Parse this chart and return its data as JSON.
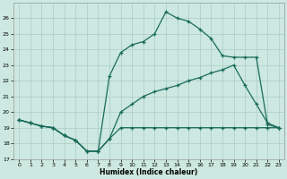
{
  "xlabel": "Humidex (Indice chaleur)",
  "bg_color": "#cce8e0",
  "grid_color": "#aaccc4",
  "line_color": "#1a6b5a",
  "xlim": [
    -0.5,
    23.5
  ],
  "ylim": [
    17,
    27
  ],
  "yticks": [
    17,
    18,
    19,
    20,
    21,
    22,
    23,
    24,
    25,
    26
  ],
  "xticks": [
    0,
    1,
    2,
    3,
    4,
    5,
    6,
    7,
    8,
    9,
    10,
    11,
    12,
    13,
    14,
    15,
    16,
    17,
    18,
    19,
    20,
    21,
    22,
    23
  ],
  "line_high_x": [
    0,
    1,
    2,
    3,
    4,
    5,
    6,
    7,
    8,
    9,
    10,
    11,
    12,
    13,
    14,
    15,
    16,
    17,
    18,
    19,
    20,
    21,
    22,
    23
  ],
  "line_high_y": [
    19.5,
    19.3,
    19.1,
    19.0,
    18.5,
    18.2,
    17.5,
    17.5,
    22.3,
    23.8,
    24.3,
    24.5,
    25.0,
    26.4,
    26.0,
    25.8,
    25.3,
    24.7,
    23.6,
    23.5,
    23.5,
    23.5,
    19.2,
    19.0
  ],
  "line_diag_x": [
    0,
    1,
    2,
    3,
    4,
    5,
    6,
    7,
    8,
    9,
    10,
    11,
    12,
    13,
    14,
    15,
    16,
    17,
    18,
    19,
    20,
    21,
    22,
    23
  ],
  "line_diag_y": [
    19.5,
    19.3,
    19.1,
    19.0,
    18.5,
    18.2,
    17.5,
    17.5,
    18.3,
    20.0,
    20.5,
    21.0,
    21.3,
    21.5,
    21.7,
    22.0,
    22.2,
    22.5,
    22.7,
    23.0,
    21.7,
    20.5,
    19.3,
    19.0
  ],
  "line_flat_x": [
    0,
    1,
    2,
    3,
    4,
    5,
    6,
    7,
    8,
    9,
    10,
    11,
    12,
    13,
    14,
    15,
    16,
    17,
    18,
    19,
    20,
    21,
    22,
    23
  ],
  "line_flat_y": [
    19.5,
    19.3,
    19.1,
    19.0,
    18.5,
    18.2,
    17.5,
    17.5,
    18.3,
    19.0,
    19.0,
    19.0,
    19.0,
    19.0,
    19.0,
    19.0,
    19.0,
    19.0,
    19.0,
    19.0,
    19.0,
    19.0,
    19.0,
    19.0
  ]
}
